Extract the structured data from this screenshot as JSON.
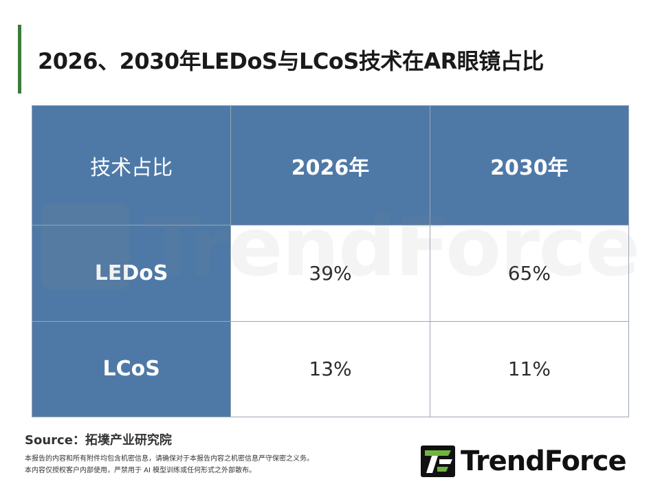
{
  "title": "2026、2030年LEDoS与LCoS技术在AR眼镜占比",
  "table": {
    "corner_label": "技术占比",
    "columns": [
      "2026年",
      "2030年"
    ],
    "rows": [
      {
        "label": "LEDoS",
        "values": [
          "39%",
          "65%"
        ]
      },
      {
        "label": "LCoS",
        "values": [
          "13%",
          "11%"
        ]
      }
    ]
  },
  "source_label": "Source：拓墣产业研究院",
  "disclaimer": [
    "本报告的内容和所有附件均包含机密信息，请确保对于本报告内容之机密信息严守保密之义务。",
    "本内容仅授权客户内部使用，严禁用于 AI 模型训练或任何形式之外部散布。"
  ],
  "watermark_text": "TrendForce",
  "logo_text": "TrendForce",
  "colors": {
    "accent": "#3d7a3b",
    "header_fill": "#4e79a7",
    "logo_green": "#6fb43f"
  }
}
